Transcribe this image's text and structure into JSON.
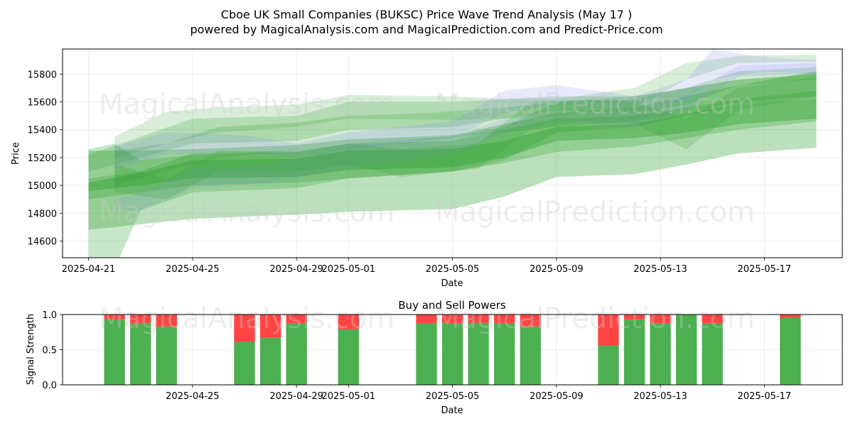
{
  "figure": {
    "title_line1": "Cboe UK Small Companies (BUKSC) Price Wave Trend Analysis (May 17 )",
    "title_line2": "powered by MagicalAnalysis.com and MagicalPrediction.com and Predict-Price.com",
    "watermarks": [
      "MagicalAnalysis.com",
      "MagicalPrediction.com"
    ]
  },
  "chart_data": [
    {
      "type": "area",
      "title": "",
      "xlabel": "Date",
      "ylabel": "Price",
      "x_ticks": [
        "2025-04-21",
        "2025-04-25",
        "2025-04-29",
        "2025-05-01",
        "2025-05-05",
        "2025-05-09",
        "2025-05-13",
        "2025-05-17"
      ],
      "y_ticks": [
        14600,
        14800,
        15000,
        15200,
        15400,
        15600,
        15800
      ],
      "xlim": [
        "2025-04-20",
        "2025-05-20"
      ],
      "ylim": [
        14480,
        15980
      ],
      "grid": true,
      "colors": {
        "green": "#2ca02c",
        "blue": "#7b86e8"
      },
      "bands": [
        {
          "color": "green",
          "opacity": 0.38,
          "x": [
            "2025-04-21",
            "2025-04-23",
            "2025-04-25",
            "2025-04-29",
            "2025-05-01",
            "2025-05-05",
            "2025-05-07",
            "2025-05-09",
            "2025-05-12",
            "2025-05-14",
            "2025-05-16",
            "2025-05-19"
          ],
          "upper": [
            15020,
            15090,
            15180,
            15190,
            15250,
            15260,
            15320,
            15420,
            15440,
            15520,
            15580,
            15620
          ],
          "lower": [
            14960,
            15000,
            15050,
            15060,
            15110,
            15130,
            15200,
            15320,
            15340,
            15380,
            15440,
            15480
          ]
        },
        {
          "color": "green",
          "opacity": 0.32,
          "x": [
            "2025-04-21",
            "2025-04-23",
            "2025-04-25",
            "2025-04-29",
            "2025-05-01",
            "2025-05-05",
            "2025-05-07",
            "2025-05-09",
            "2025-05-12",
            "2025-05-14",
            "2025-05-16",
            "2025-05-19"
          ],
          "upper": [
            15250,
            15250,
            15260,
            15290,
            15330,
            15360,
            15440,
            15520,
            15560,
            15640,
            15720,
            15820
          ],
          "lower": [
            14680,
            14720,
            14760,
            14790,
            14810,
            14830,
            14920,
            15060,
            15080,
            15150,
            15230,
            15270
          ]
        },
        {
          "color": "green",
          "opacity": 0.28,
          "x": [
            "2025-04-21",
            "2025-04-23",
            "2025-04-25",
            "2025-04-29",
            "2025-05-01",
            "2025-05-05",
            "2025-05-07",
            "2025-05-09",
            "2025-05-12",
            "2025-05-14",
            "2025-05-16",
            "2025-05-19"
          ],
          "upper": [
            15050,
            15100,
            15230,
            15250,
            15300,
            15320,
            15400,
            15480,
            15500,
            15560,
            15620,
            15680
          ],
          "lower": [
            14900,
            14950,
            15000,
            15020,
            15050,
            15100,
            15160,
            15240,
            15280,
            15340,
            15400,
            15460
          ]
        },
        {
          "color": "green",
          "opacity": 0.26,
          "x": [
            "2025-04-21",
            "2025-04-22",
            "2025-04-23",
            "2025-04-25",
            "2025-04-29",
            "2025-05-01",
            "2025-05-05",
            "2025-05-07",
            "2025-05-09",
            "2025-05-12",
            "2025-05-14",
            "2025-05-16",
            "2025-05-19"
          ],
          "upper": [
            15260,
            15300,
            15180,
            15220,
            15240,
            15300,
            15350,
            15420,
            15600,
            15620,
            15700,
            15760,
            15800
          ],
          "lower": [
            14480,
            14400,
            14820,
            14950,
            14980,
            15050,
            15100,
            15180,
            15380,
            15420,
            15500,
            15580,
            15620
          ]
        },
        {
          "color": "green",
          "opacity": 0.22,
          "x": [
            "2025-04-21",
            "2025-04-23",
            "2025-04-25",
            "2025-04-29",
            "2025-05-01",
            "2025-05-05",
            "2025-05-07",
            "2025-05-09",
            "2025-05-12",
            "2025-05-14",
            "2025-05-16",
            "2025-05-19"
          ],
          "upper": [
            15220,
            15350,
            15480,
            15500,
            15600,
            15600,
            15620,
            15640,
            15640,
            15700,
            15820,
            15850
          ],
          "lower": [
            15100,
            15200,
            15300,
            15320,
            15400,
            15420,
            15480,
            15540,
            15520,
            15580,
            15720,
            15760
          ]
        },
        {
          "color": "green",
          "opacity": 0.18,
          "x": [
            "2025-04-22",
            "2025-04-24",
            "2025-04-26",
            "2025-04-29",
            "2025-05-01",
            "2025-05-05",
            "2025-05-07",
            "2025-05-09",
            "2025-05-12",
            "2025-05-14",
            "2025-05-16",
            "2025-05-19"
          ],
          "upper": [
            15350,
            15530,
            15560,
            15580,
            15650,
            15640,
            15620,
            15620,
            15700,
            15880,
            15930,
            15940
          ],
          "lower": [
            15200,
            15300,
            15380,
            15420,
            15480,
            15470,
            15480,
            15500,
            15560,
            15760,
            15880,
            15890
          ]
        },
        {
          "color": "green",
          "opacity": 0.22,
          "x": [
            "2025-04-22",
            "2025-04-24",
            "2025-04-26",
            "2025-04-29",
            "2025-05-01",
            "2025-05-04",
            "2025-05-07",
            "2025-05-09",
            "2025-05-12",
            "2025-05-14",
            "2025-05-16",
            "2025-05-19"
          ],
          "upper": [
            15250,
            15300,
            15420,
            15450,
            15500,
            15520,
            15560,
            15600,
            15640,
            15700,
            15760,
            15800
          ],
          "lower": [
            15000,
            15100,
            15200,
            15250,
            15300,
            15330,
            15380,
            15420,
            15460,
            15520,
            15600,
            15640
          ]
        },
        {
          "color": "blue",
          "opacity": 0.18,
          "x": [
            "2025-04-22",
            "2025-04-24",
            "2025-04-27",
            "2025-04-29",
            "2025-05-01",
            "2025-05-05",
            "2025-05-07",
            "2025-05-09",
            "2025-05-12",
            "2025-05-14",
            "2025-05-15",
            "2025-05-17",
            "2025-05-19"
          ],
          "upper": [
            15280,
            15380,
            15360,
            15300,
            15380,
            15460,
            15680,
            15720,
            15640,
            15760,
            15980,
            15920,
            15900
          ],
          "lower": [
            15120,
            15220,
            15240,
            15200,
            15260,
            15340,
            15520,
            15580,
            15520,
            15620,
            15760,
            15820,
            15800
          ]
        },
        {
          "color": "blue",
          "opacity": 0.15,
          "x": [
            "2025-04-22",
            "2025-04-23",
            "2025-04-25",
            "2025-04-28",
            "2025-05-01",
            "2025-05-05",
            "2025-05-07",
            "2025-05-09",
            "2025-05-12",
            "2025-05-14",
            "2025-05-16",
            "2025-05-19"
          ],
          "upper": [
            14900,
            14950,
            15120,
            15150,
            15280,
            15350,
            15480,
            15560,
            15520,
            15650,
            15860,
            15880
          ],
          "lower": [
            14820,
            14820,
            14980,
            15020,
            15120,
            15220,
            15380,
            15460,
            15420,
            15540,
            15780,
            15800
          ]
        },
        {
          "color": "green",
          "opacity": 0.2,
          "x": [
            "2025-04-22",
            "2025-04-24",
            "2025-04-26",
            "2025-04-29",
            "2025-05-01",
            "2025-05-03",
            "2025-05-06",
            "2025-05-08",
            "2025-05-10",
            "2025-05-12",
            "2025-05-14",
            "2025-05-16",
            "2025-05-19"
          ],
          "upper": [
            15150,
            15050,
            15250,
            15240,
            15300,
            15260,
            15300,
            15600,
            15620,
            15600,
            15480,
            15700,
            15780
          ],
          "lower": [
            14950,
            14900,
            15100,
            15100,
            15150,
            15060,
            15120,
            15400,
            15460,
            15440,
            15260,
            15540,
            15640
          ]
        }
      ]
    },
    {
      "type": "bar",
      "title": "Buy and Sell Powers",
      "xlabel": "Date",
      "ylabel": "Signal Strength",
      "x_ticks": [
        "2025-04-25",
        "2025-04-29",
        "2025-05-01",
        "2025-05-05",
        "2025-05-09",
        "2025-05-13",
        "2025-05-17"
      ],
      "y_ticks": [
        "0.0",
        "0.5",
        "1.0"
      ],
      "xlim": [
        "2025-04-20",
        "2025-05-20"
      ],
      "ylim": [
        0,
        1
      ],
      "grid": true,
      "colors": {
        "buy": "#4caf50",
        "sell": "#ff4444"
      },
      "categories": [
        "2025-04-22",
        "2025-04-23",
        "2025-04-24",
        "2025-04-27",
        "2025-04-28",
        "2025-04-29",
        "2025-05-01",
        "2025-05-04",
        "2025-05-05",
        "2025-05-06",
        "2025-05-07",
        "2025-05-08",
        "2025-05-11",
        "2025-05-12",
        "2025-05-13",
        "2025-05-14",
        "2025-05-15",
        "2025-05-18"
      ],
      "series": [
        {
          "name": "buy",
          "values": [
            0.93,
            0.88,
            0.83,
            0.61,
            0.67,
            0.88,
            0.79,
            0.88,
            0.88,
            0.88,
            0.88,
            0.83,
            0.56,
            0.93,
            0.88,
            1.0,
            0.88,
            0.95
          ]
        },
        {
          "name": "sell",
          "values": [
            0.07,
            0.12,
            0.17,
            0.39,
            0.33,
            0.12,
            0.21,
            0.12,
            0.12,
            0.12,
            0.12,
            0.17,
            0.44,
            0.07,
            0.12,
            0.0,
            0.12,
            0.05
          ]
        }
      ]
    }
  ]
}
